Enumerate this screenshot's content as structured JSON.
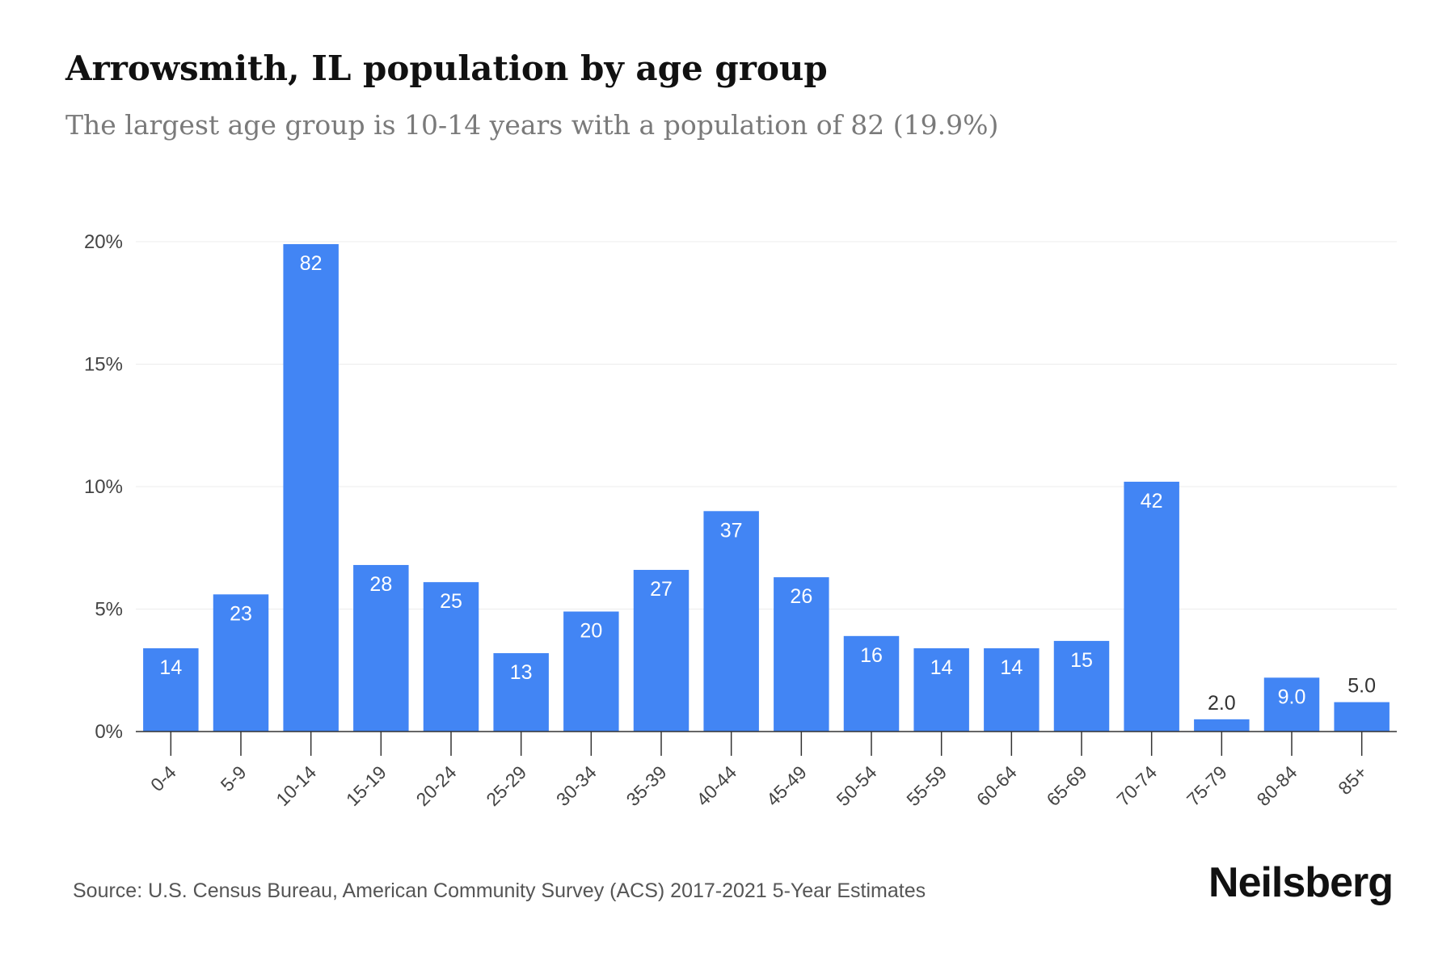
{
  "title": "Arrowsmith, IL population by age group",
  "subtitle": "The largest age group is 10-14 years with a population of 82 (19.9%)",
  "source": "Source: U.S. Census Bureau, American Community Survey (ACS) 2017-2021 5-Year Estimates",
  "brand": "Neilsberg",
  "colors": {
    "bar": "#4285F4",
    "label_inside": "#ffffff",
    "label_outside": "#333333"
  },
  "chart_data": {
    "type": "bar",
    "categories": [
      "0-4",
      "5-9",
      "10-14",
      "15-19",
      "20-24",
      "25-29",
      "30-34",
      "35-39",
      "40-44",
      "45-49",
      "50-54",
      "55-59",
      "60-64",
      "65-69",
      "70-74",
      "75-79",
      "80-84",
      "85+"
    ],
    "percent_values": [
      3.4,
      5.6,
      19.9,
      6.8,
      6.1,
      3.2,
      4.9,
      6.6,
      9.0,
      6.3,
      3.9,
      3.4,
      3.4,
      3.7,
      10.2,
      0.5,
      2.2,
      1.2
    ],
    "labels": [
      "14",
      "23",
      "82",
      "28",
      "25",
      "13",
      "20",
      "27",
      "37",
      "26",
      "16",
      "14",
      "14",
      "15",
      "42",
      "2.0",
      "9.0",
      "5.0"
    ],
    "y_ticks": [
      "0%",
      "5%",
      "10%",
      "15%",
      "20%"
    ],
    "ylim": [
      0,
      20
    ],
    "grid": true
  }
}
